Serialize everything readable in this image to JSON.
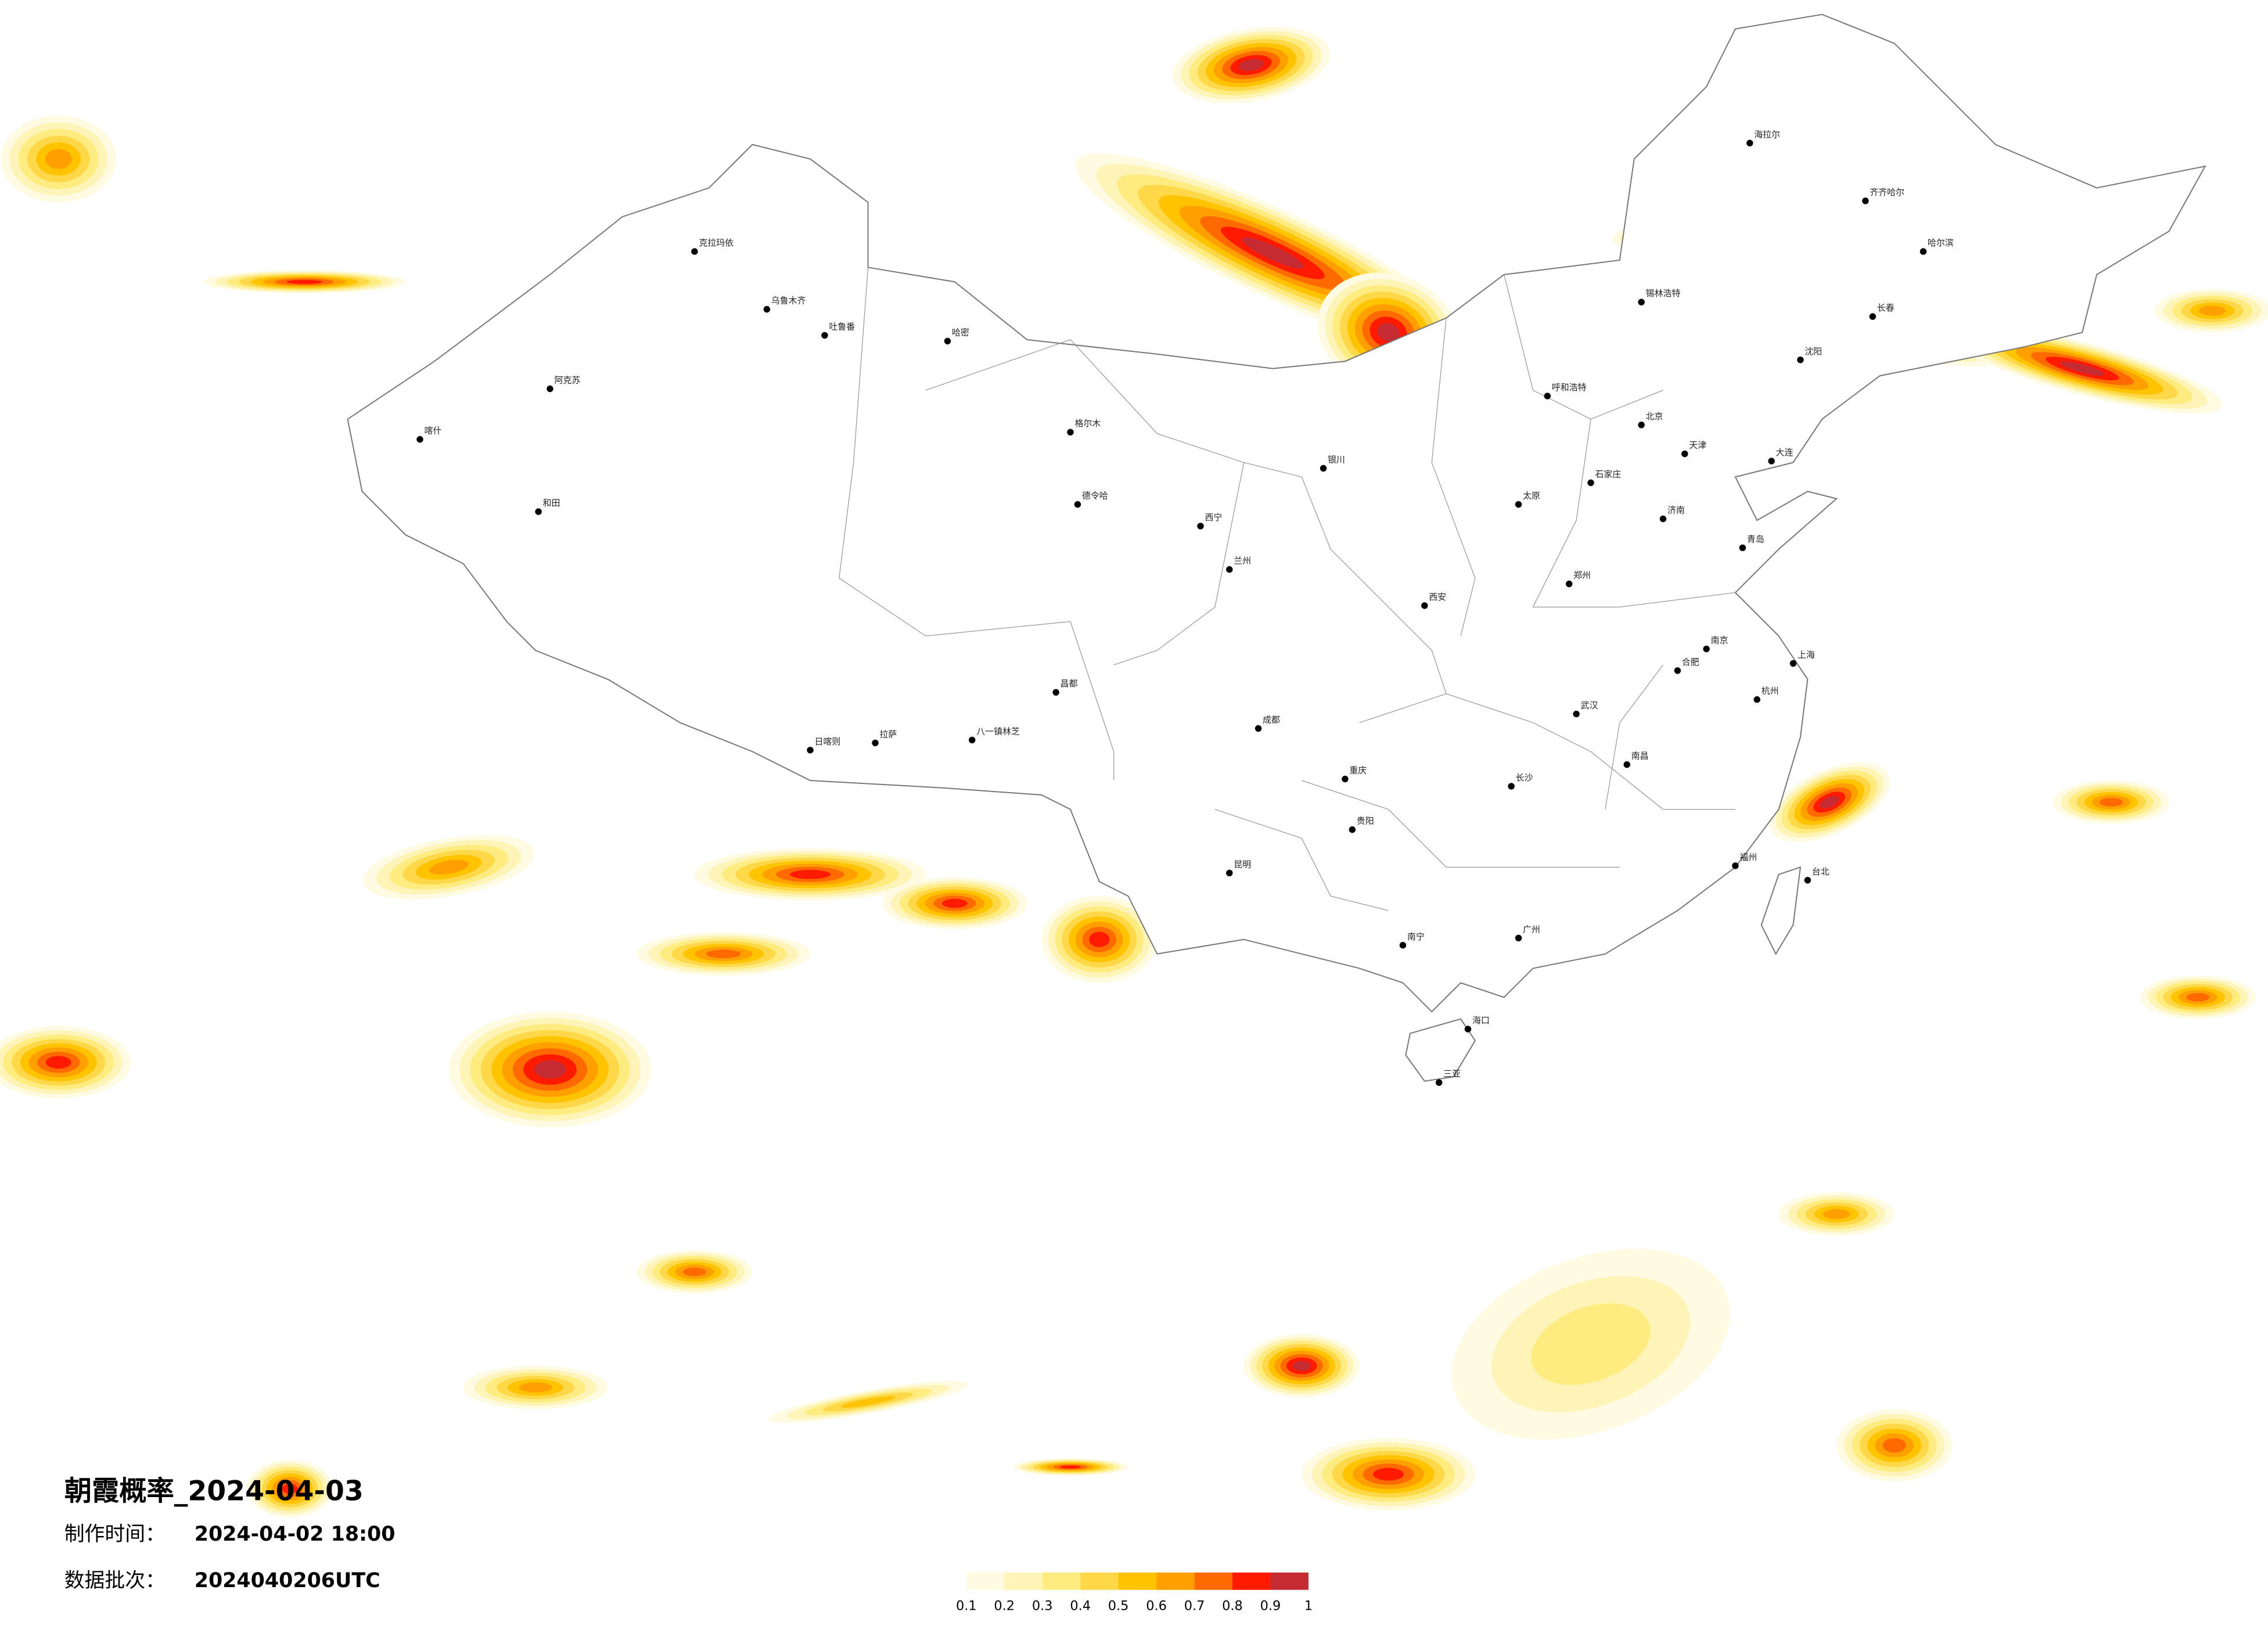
{
  "title": "朝霞概率_2024-04-03",
  "production_time": {
    "label": "制作时间：",
    "value": "2024-04-02 18:00"
  },
  "data_batch": {
    "label": "数据批次：",
    "value": "2024040206UTC"
  },
  "legend": {
    "colors": [
      "#fffbe3",
      "#fff4b8",
      "#ffec80",
      "#ffd84a",
      "#ffc300",
      "#ffa000",
      "#ff6a00",
      "#ff1a00",
      "#c62a32"
    ],
    "ticks": [
      0.1,
      0.2,
      0.3,
      0.4,
      0.5,
      0.6,
      0.7,
      0.8,
      0.9,
      1
    ]
  },
  "cities": [
    "乌鲁木齐",
    "吐鲁番",
    "哈密",
    "克拉玛依",
    "阿克苏",
    "喀什",
    "和田",
    "格尔木",
    "德令哈",
    "西宁",
    "兰州",
    "拉萨",
    "日喀则",
    "昌都",
    "八一镇林芝",
    "成都",
    "重庆",
    "昆明",
    "贵阳",
    "南宁",
    "广州",
    "海口",
    "三亚",
    "长沙",
    "武汉",
    "南昌",
    "福州",
    "台北",
    "杭州",
    "上海",
    "南京",
    "合肥",
    "郑州",
    "济南",
    "石家庄",
    "北京",
    "天津",
    "太原",
    "西安",
    "银川",
    "呼和浩特",
    "沈阳",
    "长春",
    "哈尔滨",
    "齐齐哈尔",
    "海拉尔",
    "锡林浩特",
    "大连",
    "青岛"
  ]
}
